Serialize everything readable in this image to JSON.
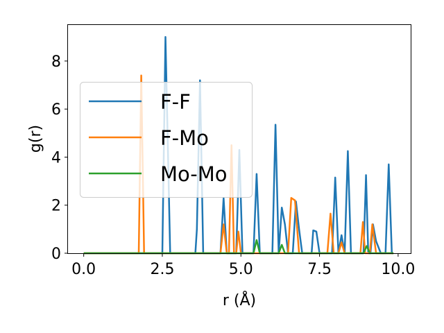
{
  "chart_data": {
    "type": "line",
    "xlabel": "r (Å)",
    "ylabel": "g(r)",
    "xlim": [
      -0.5,
      10.4
    ],
    "ylim": [
      0,
      9.5
    ],
    "xticks": [
      0,
      2.5,
      5,
      7.5,
      10
    ],
    "xtick_labels": [
      "0.0",
      "2.5",
      "5.0",
      "7.5",
      "10.0"
    ],
    "yticks": [
      0,
      2,
      4,
      6,
      8
    ],
    "ytick_labels": [
      "0",
      "2",
      "4",
      "6",
      "8"
    ],
    "grid": false,
    "legend_position": "upper-left",
    "series": [
      {
        "name": "F-F",
        "color": "#1f77b4",
        "points": [
          [
            0,
            0
          ],
          [
            2.5,
            0
          ],
          [
            2.6,
            9.0
          ],
          [
            2.75,
            0
          ],
          [
            3.55,
            0
          ],
          [
            3.6,
            1.0
          ],
          [
            3.7,
            7.2
          ],
          [
            3.8,
            0
          ],
          [
            4.35,
            0
          ],
          [
            4.45,
            2.3
          ],
          [
            4.55,
            0
          ],
          [
            4.85,
            0
          ],
          [
            4.95,
            4.3
          ],
          [
            5.05,
            0
          ],
          [
            5.4,
            0
          ],
          [
            5.5,
            3.3
          ],
          [
            5.6,
            0
          ],
          [
            6.0,
            0
          ],
          [
            6.1,
            5.35
          ],
          [
            6.2,
            0
          ],
          [
            6.3,
            1.9
          ],
          [
            6.4,
            1.2
          ],
          [
            6.5,
            0
          ],
          [
            6.65,
            0
          ],
          [
            6.75,
            2.15
          ],
          [
            6.85,
            1.0
          ],
          [
            6.95,
            0
          ],
          [
            7.25,
            0
          ],
          [
            7.3,
            0.95
          ],
          [
            7.4,
            0.9
          ],
          [
            7.5,
            0
          ],
          [
            7.9,
            0
          ],
          [
            8.0,
            3.15
          ],
          [
            8.1,
            0
          ],
          [
            8.2,
            0.75
          ],
          [
            8.3,
            0
          ],
          [
            8.4,
            4.25
          ],
          [
            8.5,
            0
          ],
          [
            8.9,
            0
          ],
          [
            8.98,
            3.25
          ],
          [
            9.05,
            0
          ],
          [
            9.12,
            0
          ],
          [
            9.2,
            1.2
          ],
          [
            9.3,
            0.5
          ],
          [
            9.45,
            0
          ],
          [
            9.6,
            0
          ],
          [
            9.7,
            3.7
          ],
          [
            9.8,
            0
          ],
          [
            9.85,
            0
          ]
        ]
      },
      {
        "name": "F-Mo",
        "color": "#ff7f0e",
        "points": [
          [
            0,
            0
          ],
          [
            1.75,
            0
          ],
          [
            1.83,
            7.4
          ],
          [
            1.92,
            0
          ],
          [
            4.35,
            0
          ],
          [
            4.45,
            1.2
          ],
          [
            4.55,
            0
          ],
          [
            4.62,
            0
          ],
          [
            4.7,
            4.5
          ],
          [
            4.78,
            0
          ],
          [
            4.85,
            0
          ],
          [
            4.92,
            0.9
          ],
          [
            5.0,
            0
          ],
          [
            6.5,
            0
          ],
          [
            6.6,
            2.3
          ],
          [
            6.72,
            2.2
          ],
          [
            6.85,
            0
          ],
          [
            7.75,
            0
          ],
          [
            7.85,
            1.65
          ],
          [
            7.95,
            0
          ],
          [
            8.1,
            0
          ],
          [
            8.2,
            0.45
          ],
          [
            8.3,
            0
          ],
          [
            8.8,
            0
          ],
          [
            8.88,
            1.3
          ],
          [
            8.95,
            0
          ],
          [
            9.1,
            0
          ],
          [
            9.18,
            1.2
          ],
          [
            9.3,
            0
          ],
          [
            9.85,
            0
          ]
        ]
      },
      {
        "name": "Mo-Mo",
        "color": "#2ca02c",
        "points": [
          [
            0,
            0
          ],
          [
            5.4,
            0
          ],
          [
            5.5,
            0.55
          ],
          [
            5.6,
            0
          ],
          [
            6.2,
            0
          ],
          [
            6.3,
            0.35
          ],
          [
            6.4,
            0
          ],
          [
            8.9,
            0
          ],
          [
            9.0,
            0.3
          ],
          [
            9.1,
            0
          ],
          [
            9.85,
            0
          ]
        ]
      }
    ]
  }
}
